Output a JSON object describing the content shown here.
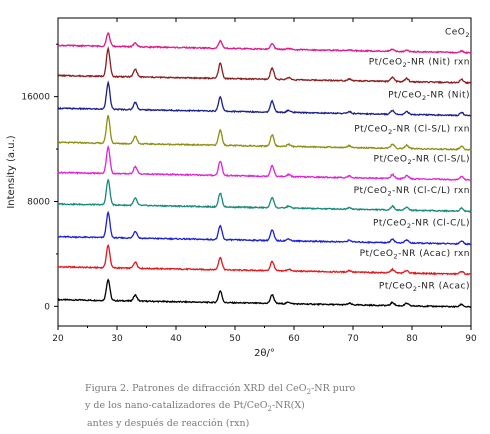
{
  "chart_data": {
    "type": "line",
    "title": "",
    "xlabel": "2θ/°",
    "ylabel": "Intensity (a.u.)",
    "xlim": [
      20,
      90
    ],
    "ylim": [
      -1500,
      22000
    ],
    "xticks": [
      "20",
      "30",
      "40",
      "50",
      "60",
      "70",
      "80",
      "90"
    ],
    "yticks": [
      "0",
      "8000",
      "16000"
    ],
    "grid": false,
    "legend": "inline labels above each trace",
    "peaks": [
      {
        "two_theta": 28.5,
        "rel": 1.0
      },
      {
        "two_theta": 33.1,
        "rel": 0.28
      },
      {
        "two_theta": 47.5,
        "rel": 0.55
      },
      {
        "two_theta": 56.3,
        "rel": 0.42
      },
      {
        "two_theta": 59.1,
        "rel": 0.08
      },
      {
        "two_theta": 69.4,
        "rel": 0.07
      },
      {
        "two_theta": 76.7,
        "rel": 0.15
      },
      {
        "two_theta": 79.1,
        "rel": 0.12
      },
      {
        "two_theta": 88.4,
        "rel": 0.12
      }
    ],
    "series": [
      {
        "name": "Pt/CeO2-NR (Acac)",
        "label_main": "Pt/CeO",
        "label_sub": "2",
        "label_tail": "-NR (Acac)",
        "color": "#000000",
        "baseline": 300,
        "peak_height": 1600
      },
      {
        "name": "Pt/CeO2-NR (Acac) rxn",
        "label_main": "Pt/CeO",
        "label_sub": "2",
        "label_tail": "-NR (Acac) rxn",
        "color": "#e4161b",
        "baseline": 2800,
        "peak_height": 1700
      },
      {
        "name": "Pt/CeO2-NR (Cl-C/L)",
        "label_main": "Pt/CeO",
        "label_sub": "2",
        "label_tail": "-NR (Cl-C/L)",
        "color": "#1b1fd6",
        "baseline": 5100,
        "peak_height": 1900
      },
      {
        "name": "Pt/CeO2-NR (Cl-C/L) rxn",
        "label_main": "Pt/CeO",
        "label_sub": "2",
        "label_tail": "-NR (Cl-C/L) rxn",
        "color": "#168a7a",
        "baseline": 7600,
        "peak_height": 1900
      },
      {
        "name": "Pt/CeO2-NR (Cl-S/L)",
        "label_main": "Pt/CeO",
        "label_sub": "2",
        "label_tail": "-NR (Cl-S/L)",
        "color": "#e021d6",
        "baseline": 10000,
        "peak_height": 2000
      },
      {
        "name": "Pt/CeO2-NR (Cl-S/L) rxn",
        "label_main": "Pt/CeO",
        "label_sub": "2",
        "label_tail": "-NR (Cl-S/L) rxn",
        "color": "#8e8e12",
        "baseline": 12300,
        "peak_height": 2100
      },
      {
        "name": "Pt/CeO2-NR (Nit)",
        "label_main": "Pt/CeO",
        "label_sub": "2",
        "label_tail": "-NR (Nit)",
        "color": "#1a1f8c",
        "baseline": 14900,
        "peak_height": 2000
      },
      {
        "name": "Pt/CeO2-NR (Nit) rxn",
        "label_main": "Pt/CeO",
        "label_sub": "2",
        "label_tail": "-NR (Nit) rxn",
        "color": "#8b1c1e",
        "baseline": 17400,
        "peak_height": 2100
      },
      {
        "name": "CeO2",
        "label_main": "CeO",
        "label_sub": "2",
        "label_tail": "",
        "color": "#e0168c",
        "baseline": 19700,
        "peak_height": 1000
      }
    ]
  },
  "caption": {
    "line1_pre": "Figura 2. Patrones de difracción XRD del CeO",
    "line1_sub": "2",
    "line1_post": "-NR puro",
    "line2_pre": "y de los nano-catalizadores de Pt/CeO",
    "line2_sub": "2",
    "line2_post": "-NR(X)",
    "line3": "antes y después de reacción (rxn)"
  }
}
